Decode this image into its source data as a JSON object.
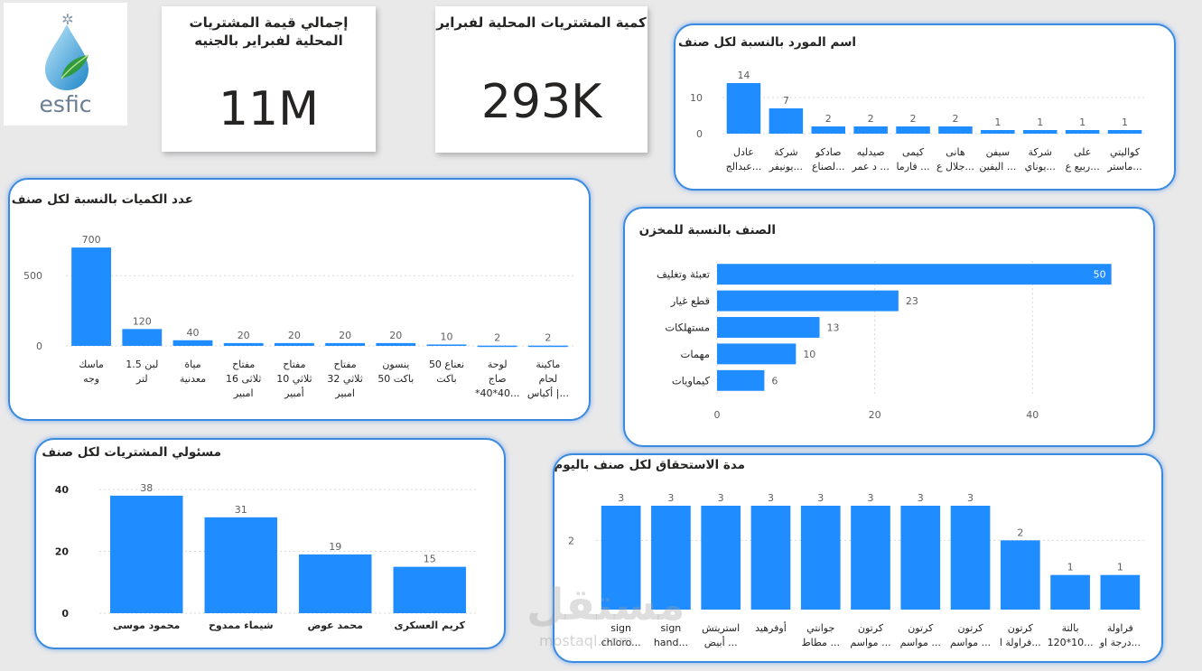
{
  "logo": {
    "text": "esfic"
  },
  "kpis": [
    {
      "title": "إجمالي قيمة المشتريات المحلية لفبراير بالجنيه",
      "value": "11M"
    },
    {
      "title": "كمية المشتريات المحلية لفبراير",
      "value": "293K"
    }
  ],
  "watermark": {
    "text": "مستقل",
    "sub": "mostaql.com"
  },
  "colors": {
    "bar": "#1f8cff",
    "grid": "#d9d9d9",
    "text": "#605e5c"
  },
  "chart_data": [
    {
      "id": "supplier",
      "type": "bar",
      "title": "اسم المورد بالنسبة لكل صنف",
      "categories": [
        [
          "عادل",
          "عبدالج..."
        ],
        [
          "شركة",
          "يونيفر..."
        ],
        [
          "صادكو",
          "لصناع..."
        ],
        [
          "صيدليه",
          "د عمر ..."
        ],
        [
          "كيمى",
          "فارما ..."
        ],
        [
          "هانى",
          "جلال ع..."
        ],
        [
          "سيفن",
          "اليفين ..."
        ],
        [
          "شركة",
          "يوناي..."
        ],
        [
          "على",
          "ربيع ع..."
        ],
        [
          "كواليتي",
          "ماستر..."
        ]
      ],
      "values": [
        14,
        7,
        2,
        2,
        2,
        2,
        1,
        1,
        1,
        1
      ],
      "yticks": [
        0,
        10
      ],
      "ylim": [
        0,
        14.5
      ]
    },
    {
      "id": "quantity",
      "type": "bar",
      "title": "عدد الكميات بالنسبة لكل صنف",
      "categories": [
        [
          "ماسك",
          "وجه"
        ],
        [
          "لبن 1.5",
          "لتر"
        ],
        [
          "مياة",
          "معدنية"
        ],
        [
          "مفتاح",
          "ثلاثى 16",
          "امبير"
        ],
        [
          "مفتاح",
          "ثلاثي 10",
          "أمبير"
        ],
        [
          "مفتاح",
          "ثلاثي 32",
          "امبير"
        ],
        [
          "ينسون",
          "باكت 50"
        ],
        [
          "نعناع 50",
          "باكت"
        ],
        [
          "لوحة",
          "صاج",
          "*40*40..."
        ],
        [
          "ماكينة",
          "لحام",
          "أكياس |..."
        ]
      ],
      "values": [
        700,
        120,
        40,
        20,
        20,
        20,
        20,
        10,
        2,
        2
      ],
      "yticks": [
        0,
        500
      ],
      "ylim": [
        0,
        720
      ]
    },
    {
      "id": "category_store",
      "type": "bar",
      "orientation": "horizontal",
      "title": "الصنف بالنسبة للمخزن",
      "categories": [
        "تعبئة وتغليف",
        "قطع غيار",
        "مستهلكات",
        "مهمات",
        "كيماويات"
      ],
      "values": [
        50,
        23,
        13,
        10,
        6
      ],
      "xticks": [
        0,
        20,
        40
      ],
      "xlim": [
        0,
        50.5
      ]
    },
    {
      "id": "officer",
      "type": "bar",
      "title": "مسئولي المشتريات لكل صنف",
      "categories": [
        [
          "محمود موسى"
        ],
        [
          "شيماء ممدوح"
        ],
        [
          "محمد عوض"
        ],
        [
          "كريم العسكرى"
        ]
      ],
      "values": [
        38,
        31,
        19,
        15
      ],
      "yticks": [
        0,
        20,
        40
      ],
      "ylim": [
        0,
        40
      ]
    },
    {
      "id": "due_days",
      "type": "bar",
      "title": "مدة الاستحقاق لكل صنف باليوم",
      "categories": [
        [
          "sign",
          "chloro..."
        ],
        [
          "sign",
          "hand..."
        ],
        [
          "استريتش",
          "أبيض ..."
        ],
        [
          "أوفرهيد"
        ],
        [
          "جوانتي",
          "مطاط ..."
        ],
        [
          "كرتون",
          "مواسم ..."
        ],
        [
          "كرتون",
          "مواسم ..."
        ],
        [
          "كرتون",
          "مواسم ..."
        ],
        [
          "كرتون",
          "فراولة ا..."
        ],
        [
          "بالتة",
          "120*10..."
        ],
        [
          "فراولة",
          "درجة او..."
        ]
      ],
      "values": [
        3,
        3,
        3,
        3,
        3,
        3,
        3,
        3,
        2,
        1,
        1
      ],
      "yticks": [
        2
      ],
      "ylim": [
        0,
        3
      ]
    }
  ]
}
